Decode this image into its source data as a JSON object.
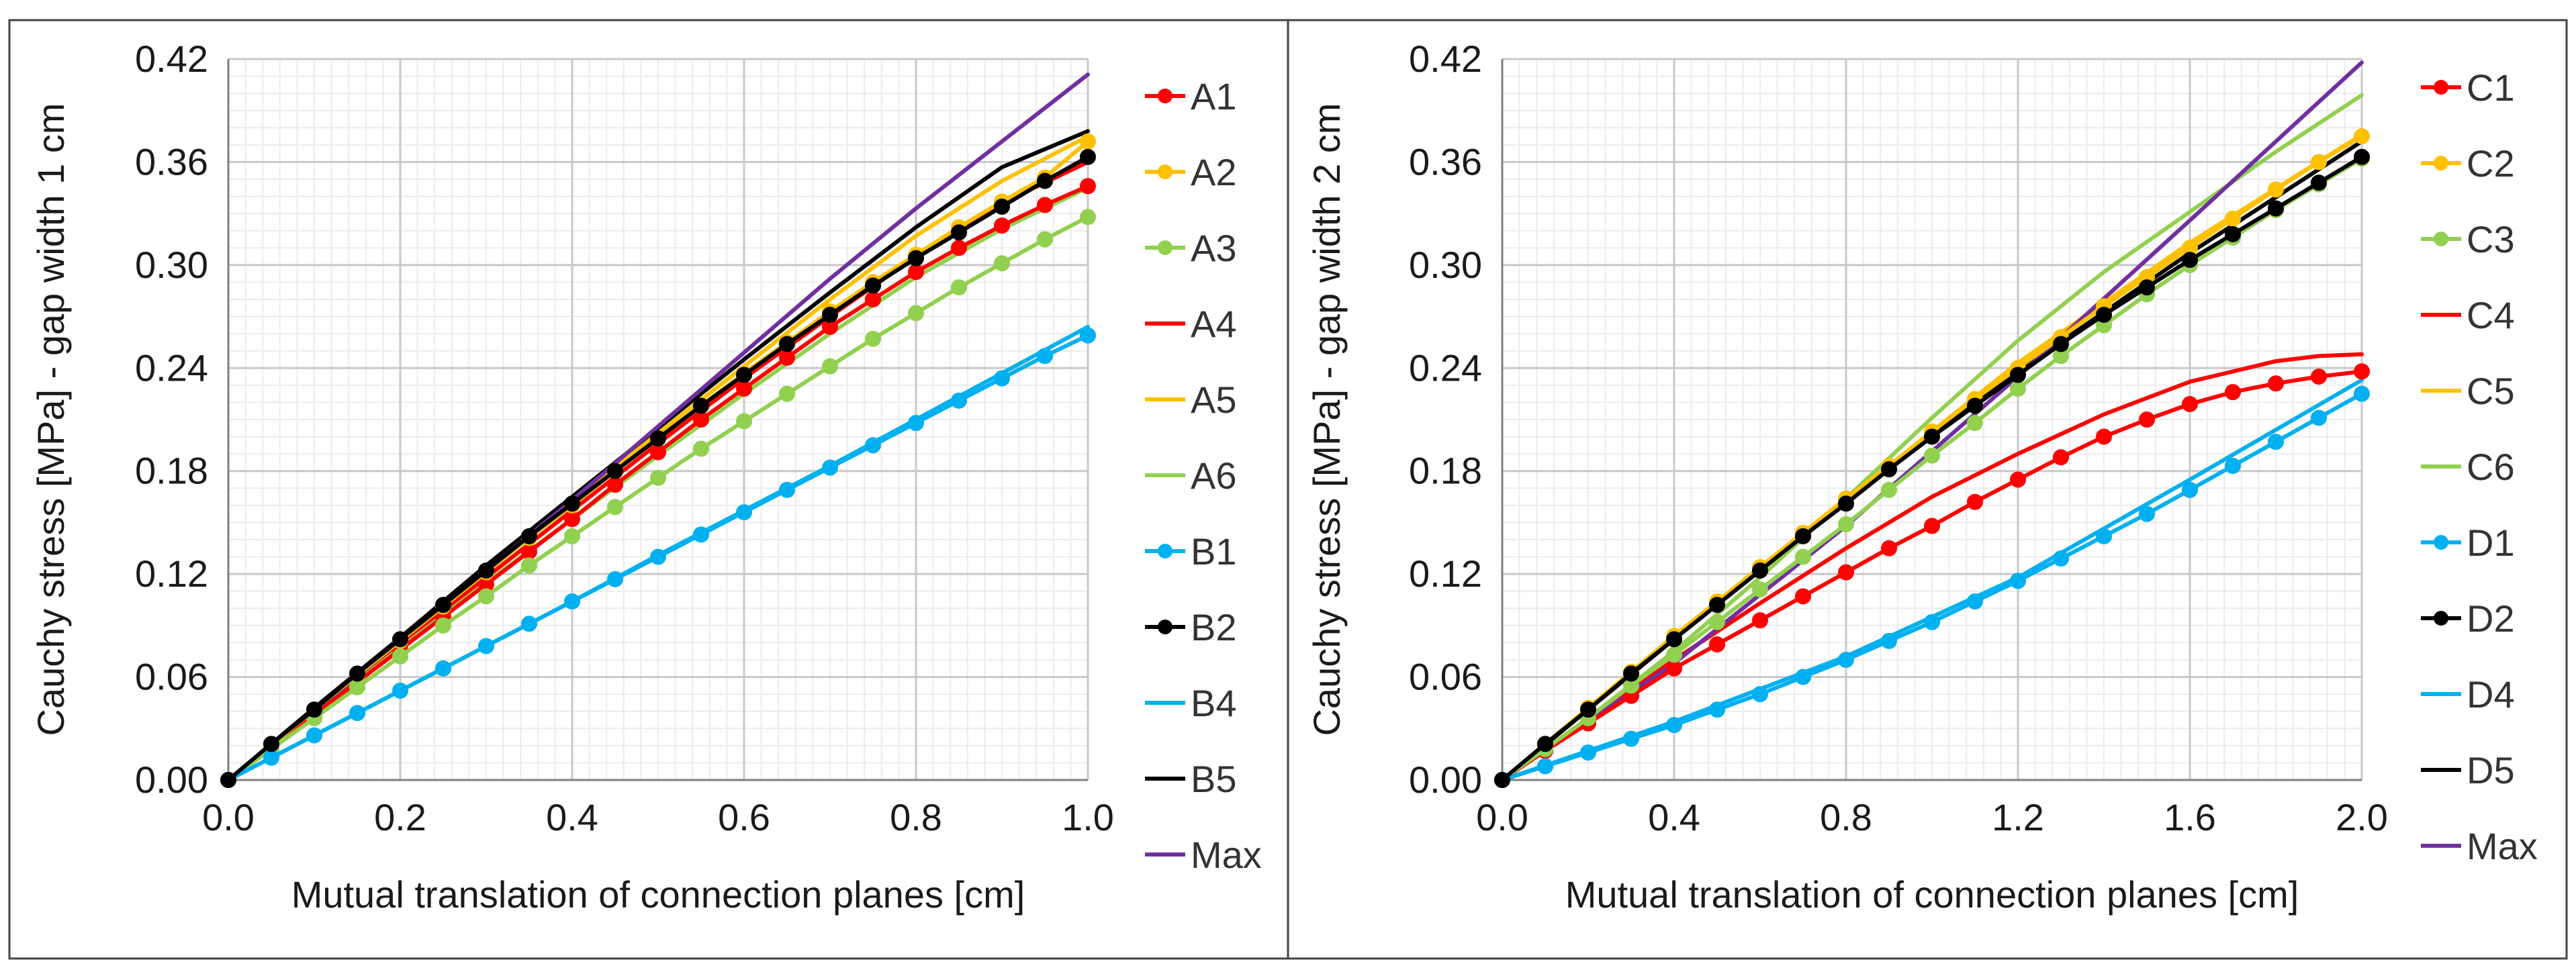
{
  "chart_data": [
    {
      "type": "line",
      "xlabel": "Mutual translation of connection planes [cm]",
      "ylabel": "Cauchy stress [MPa] - gap width 1 cm",
      "xlim": [
        0,
        1.0
      ],
      "ylim": [
        0,
        0.42
      ],
      "xticks": [
        "0.0",
        "0.2",
        "0.4",
        "0.6",
        "0.8",
        "1.0"
      ],
      "yticks": [
        "0.00",
        "0.06",
        "0.12",
        "0.18",
        "0.24",
        "0.30",
        "0.36",
        "0.42"
      ],
      "grid": true,
      "legend_position": "right",
      "series": [
        {
          "name": "A1",
          "color": "#ff0000",
          "marker": true,
          "x": [
            0,
            0.05,
            0.1,
            0.15,
            0.2,
            0.25,
            0.3,
            0.35,
            0.4,
            0.45,
            0.5,
            0.55,
            0.6,
            0.65,
            0.7,
            0.75,
            0.8,
            0.85,
            0.9,
            0.95,
            1.0
          ],
          "y": [
            0,
            0.019,
            0.038,
            0.057,
            0.076,
            0.095,
            0.114,
            0.133,
            0.152,
            0.172,
            0.191,
            0.21,
            0.228,
            0.246,
            0.264,
            0.28,
            0.296,
            0.31,
            0.323,
            0.335,
            0.346
          ]
        },
        {
          "name": "A2",
          "color": "#ffc000",
          "marker": true,
          "x": [
            0,
            0.05,
            0.1,
            0.15,
            0.2,
            0.25,
            0.3,
            0.35,
            0.4,
            0.45,
            0.5,
            0.55,
            0.6,
            0.65,
            0.7,
            0.75,
            0.8,
            0.85,
            0.9,
            0.95,
            1.0
          ],
          "y": [
            0,
            0.02,
            0.041,
            0.061,
            0.081,
            0.101,
            0.121,
            0.141,
            0.16,
            0.18,
            0.199,
            0.218,
            0.237,
            0.255,
            0.273,
            0.29,
            0.306,
            0.322,
            0.337,
            0.351,
            0.372
          ]
        },
        {
          "name": "A3",
          "color": "#92d050",
          "marker": true,
          "x": [
            0,
            0.05,
            0.1,
            0.15,
            0.2,
            0.25,
            0.3,
            0.35,
            0.4,
            0.45,
            0.5,
            0.55,
            0.6,
            0.65,
            0.7,
            0.75,
            0.8,
            0.85,
            0.9,
            0.95,
            1.0
          ],
          "y": [
            0,
            0.018,
            0.036,
            0.054,
            0.072,
            0.09,
            0.107,
            0.125,
            0.142,
            0.159,
            0.176,
            0.193,
            0.209,
            0.225,
            0.241,
            0.257,
            0.272,
            0.287,
            0.301,
            0.315,
            0.328
          ]
        },
        {
          "name": "A4",
          "color": "#ff0000",
          "marker": false,
          "x": [
            0,
            0.1,
            0.2,
            0.3,
            0.4,
            0.5,
            0.6,
            0.7,
            0.8,
            0.9,
            1.0
          ],
          "y": [
            0,
            0.039,
            0.079,
            0.118,
            0.157,
            0.196,
            0.234,
            0.27,
            0.305,
            0.336,
            0.36
          ]
        },
        {
          "name": "A5",
          "color": "#ffc000",
          "marker": false,
          "x": [
            0,
            0.1,
            0.2,
            0.3,
            0.4,
            0.5,
            0.6,
            0.7,
            0.8,
            0.9,
            1.0
          ],
          "y": [
            0,
            0.041,
            0.082,
            0.122,
            0.162,
            0.202,
            0.241,
            0.28,
            0.317,
            0.349,
            0.375
          ]
        },
        {
          "name": "A6",
          "color": "#92d050",
          "marker": false,
          "x": [
            0,
            0.1,
            0.2,
            0.3,
            0.4,
            0.5,
            0.6,
            0.7,
            0.8,
            0.9,
            1.0
          ],
          "y": [
            0,
            0.038,
            0.077,
            0.115,
            0.152,
            0.189,
            0.225,
            0.26,
            0.293,
            0.321,
            0.345
          ]
        },
        {
          "name": "B1",
          "color": "#00b0f0",
          "marker": true,
          "x": [
            0,
            0.05,
            0.1,
            0.15,
            0.2,
            0.25,
            0.3,
            0.35,
            0.4,
            0.45,
            0.5,
            0.55,
            0.6,
            0.65,
            0.7,
            0.75,
            0.8,
            0.85,
            0.9,
            0.95,
            1.0
          ],
          "y": [
            0,
            0.013,
            0.026,
            0.039,
            0.052,
            0.065,
            0.078,
            0.091,
            0.104,
            0.117,
            0.13,
            0.143,
            0.156,
            0.169,
            0.182,
            0.195,
            0.208,
            0.221,
            0.234,
            0.247,
            0.259
          ]
        },
        {
          "name": "B2",
          "color": "#000000",
          "marker": true,
          "x": [
            0,
            0.05,
            0.1,
            0.15,
            0.2,
            0.25,
            0.3,
            0.35,
            0.4,
            0.45,
            0.5,
            0.55,
            0.6,
            0.65,
            0.7,
            0.75,
            0.8,
            0.85,
            0.9,
            0.95,
            1.0
          ],
          "y": [
            0,
            0.021,
            0.041,
            0.062,
            0.082,
            0.102,
            0.122,
            0.142,
            0.161,
            0.18,
            0.199,
            0.218,
            0.236,
            0.254,
            0.271,
            0.288,
            0.304,
            0.319,
            0.334,
            0.349,
            0.363
          ]
        },
        {
          "name": "B4",
          "color": "#00b0f0",
          "marker": false,
          "x": [
            0,
            0.1,
            0.2,
            0.3,
            0.4,
            0.5,
            0.6,
            0.7,
            0.8,
            0.9,
            1.0
          ],
          "y": [
            0,
            0.026,
            0.052,
            0.078,
            0.104,
            0.131,
            0.157,
            0.183,
            0.21,
            0.237,
            0.264
          ]
        },
        {
          "name": "B5",
          "color": "#000000",
          "marker": false,
          "x": [
            0,
            0.1,
            0.2,
            0.3,
            0.4,
            0.5,
            0.6,
            0.7,
            0.8,
            0.9,
            1.0
          ],
          "y": [
            0,
            0.042,
            0.083,
            0.125,
            0.165,
            0.205,
            0.245,
            0.284,
            0.322,
            0.357,
            0.378
          ]
        },
        {
          "name": "Max",
          "color": "#7030a0",
          "marker": false,
          "x": [
            0,
            0.1,
            0.2,
            0.3,
            0.4,
            0.5,
            0.6,
            0.7,
            0.8,
            0.9,
            1.0
          ],
          "y": [
            0,
            0.04,
            0.081,
            0.122,
            0.163,
            0.206,
            0.249,
            0.292,
            0.333,
            0.372,
            0.411
          ]
        }
      ]
    },
    {
      "type": "line",
      "xlabel": "Mutual translation of connection planes [cm]",
      "ylabel": "Cauchy stress [MPa] - gap width 2 cm",
      "xlim": [
        0,
        2.0
      ],
      "ylim": [
        0,
        0.42
      ],
      "xticks": [
        "0.0",
        "0.4",
        "0.8",
        "1.2",
        "1.6",
        "2.0"
      ],
      "yticks": [
        "0.00",
        "0.06",
        "0.12",
        "0.18",
        "0.24",
        "0.30",
        "0.36",
        "0.42"
      ],
      "grid": true,
      "legend_position": "right",
      "series": [
        {
          "name": "C1",
          "color": "#ff0000",
          "marker": true,
          "x": [
            0,
            0.1,
            0.2,
            0.3,
            0.4,
            0.5,
            0.6,
            0.7,
            0.8,
            0.9,
            1.0,
            1.1,
            1.2,
            1.3,
            1.4,
            1.5,
            1.6,
            1.7,
            1.8,
            1.9,
            2.0
          ],
          "y": [
            0,
            0.017,
            0.033,
            0.049,
            0.065,
            0.079,
            0.093,
            0.107,
            0.121,
            0.135,
            0.148,
            0.162,
            0.175,
            0.188,
            0.2,
            0.21,
            0.219,
            0.226,
            0.231,
            0.235,
            0.238
          ]
        },
        {
          "name": "C2",
          "color": "#ffc000",
          "marker": true,
          "x": [
            0,
            0.1,
            0.2,
            0.3,
            0.4,
            0.5,
            0.6,
            0.7,
            0.8,
            0.9,
            1.0,
            1.1,
            1.2,
            1.3,
            1.4,
            1.5,
            1.6,
            1.7,
            1.8,
            1.9,
            2.0
          ],
          "y": [
            0,
            0.021,
            0.042,
            0.063,
            0.084,
            0.104,
            0.124,
            0.144,
            0.164,
            0.183,
            0.203,
            0.222,
            0.24,
            0.258,
            0.276,
            0.293,
            0.31,
            0.327,
            0.344,
            0.36,
            0.375
          ]
        },
        {
          "name": "C3",
          "color": "#92d050",
          "marker": true,
          "x": [
            0,
            0.1,
            0.2,
            0.3,
            0.4,
            0.5,
            0.6,
            0.7,
            0.8,
            0.9,
            1.0,
            1.1,
            1.2,
            1.3,
            1.4,
            1.5,
            1.6,
            1.7,
            1.8,
            1.9,
            2.0
          ],
          "y": [
            0,
            0.018,
            0.036,
            0.055,
            0.073,
            0.092,
            0.111,
            0.13,
            0.149,
            0.169,
            0.189,
            0.208,
            0.228,
            0.247,
            0.265,
            0.283,
            0.3,
            0.316,
            0.332,
            0.347,
            0.362
          ]
        },
        {
          "name": "C4",
          "color": "#ff0000",
          "marker": false,
          "x": [
            0,
            0.2,
            0.4,
            0.6,
            0.8,
            1.0,
            1.2,
            1.4,
            1.6,
            1.8,
            1.9,
            2.0
          ],
          "y": [
            0,
            0.035,
            0.07,
            0.103,
            0.135,
            0.165,
            0.19,
            0.213,
            0.232,
            0.244,
            0.247,
            0.248
          ]
        },
        {
          "name": "C5",
          "color": "#ffc000",
          "marker": false,
          "x": [
            0,
            0.4,
            0.8,
            1.2,
            1.6,
            2.0
          ],
          "y": [
            0,
            0.082,
            0.163,
            0.243,
            0.313,
            0.376
          ]
        },
        {
          "name": "C6",
          "color": "#92d050",
          "marker": false,
          "x": [
            0,
            0.2,
            0.4,
            0.6,
            0.8,
            1.0,
            1.2,
            1.4,
            1.6,
            1.8,
            2.0
          ],
          "y": [
            0,
            0.036,
            0.075,
            0.118,
            0.164,
            0.211,
            0.256,
            0.296,
            0.331,
            0.366,
            0.399
          ]
        },
        {
          "name": "D1",
          "color": "#00b0f0",
          "marker": true,
          "x": [
            0,
            0.1,
            0.2,
            0.3,
            0.4,
            0.5,
            0.6,
            0.7,
            0.8,
            0.9,
            1.0,
            1.1,
            1.2,
            1.3,
            1.4,
            1.5,
            1.6,
            1.7,
            1.8,
            1.9,
            2.0
          ],
          "y": [
            0,
            0.008,
            0.016,
            0.024,
            0.032,
            0.041,
            0.05,
            0.06,
            0.07,
            0.081,
            0.092,
            0.104,
            0.116,
            0.129,
            0.142,
            0.155,
            0.169,
            0.183,
            0.197,
            0.211,
            0.225
          ]
        },
        {
          "name": "D2",
          "color": "#000000",
          "marker": true,
          "x": [
            0,
            0.1,
            0.2,
            0.3,
            0.4,
            0.5,
            0.6,
            0.7,
            0.8,
            0.9,
            1.0,
            1.1,
            1.2,
            1.3,
            1.4,
            1.5,
            1.6,
            1.7,
            1.8,
            1.9,
            2.0
          ],
          "y": [
            0,
            0.021,
            0.041,
            0.062,
            0.082,
            0.102,
            0.122,
            0.142,
            0.161,
            0.181,
            0.2,
            0.218,
            0.236,
            0.254,
            0.271,
            0.287,
            0.303,
            0.318,
            0.333,
            0.348,
            0.363
          ]
        },
        {
          "name": "D4",
          "color": "#00b0f0",
          "marker": false,
          "x": [
            0,
            0.4,
            0.8,
            1.2,
            1.6,
            2.0
          ],
          "y": [
            0,
            0.034,
            0.072,
            0.118,
            0.175,
            0.233
          ]
        },
        {
          "name": "D5",
          "color": "#000000",
          "marker": false,
          "x": [
            0,
            0.4,
            0.8,
            1.2,
            1.6,
            2.0
          ],
          "y": [
            0,
            0.082,
            0.163,
            0.238,
            0.307,
            0.372
          ]
        },
        {
          "name": "Max",
          "color": "#7030a0",
          "marker": false,
          "x": [
            0,
            0.4,
            0.8,
            1.2,
            1.6,
            2.0
          ],
          "y": [
            0,
            0.068,
            0.148,
            0.235,
            0.326,
            0.418
          ]
        }
      ]
    }
  ]
}
